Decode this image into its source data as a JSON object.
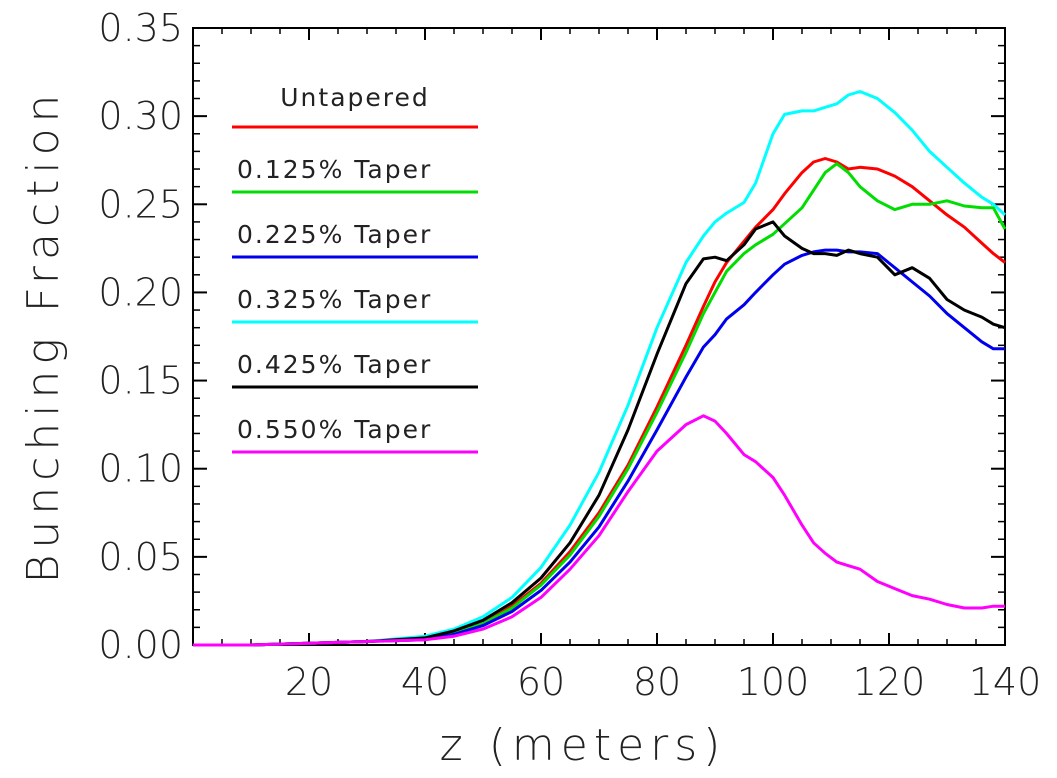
{
  "chart_data": {
    "type": "line",
    "title": "",
    "xlabel": "z (meters)",
    "ylabel": "Bunching Fraction",
    "xlim": [
      0,
      140
    ],
    "ylim": [
      0,
      0.35
    ],
    "x_ticks": [
      20,
      40,
      60,
      80,
      100,
      120,
      140
    ],
    "x_tick_labels": [
      "20",
      "40",
      "60",
      "80",
      "100",
      "120",
      "140"
    ],
    "y_ticks": [
      0,
      0.05,
      0.1,
      0.15,
      0.2,
      0.25,
      0.3,
      0.35
    ],
    "y_tick_labels": [
      "0.00",
      "0.05",
      "0.10",
      "0.15",
      "0.20",
      "0.25",
      "0.30",
      "0.35"
    ],
    "grid": false,
    "legend_title": "Untapered",
    "legend_position": "top-left",
    "x": [
      0,
      10,
      20,
      30,
      40,
      45,
      50,
      55,
      60,
      65,
      70,
      75,
      80,
      85,
      88,
      90,
      92,
      95,
      97,
      100,
      102,
      105,
      107,
      109,
      111,
      113,
      115,
      118,
      121,
      124,
      127,
      130,
      133,
      136,
      138,
      140
    ],
    "series": [
      {
        "name": "Untapered",
        "color": "#ff0000",
        "values": [
          0.0,
          0.0,
          0.001,
          0.002,
          0.004,
          0.007,
          0.012,
          0.022,
          0.035,
          0.053,
          0.075,
          0.102,
          0.135,
          0.17,
          0.192,
          0.206,
          0.217,
          0.229,
          0.237,
          0.247,
          0.256,
          0.268,
          0.274,
          0.276,
          0.274,
          0.27,
          0.271,
          0.27,
          0.266,
          0.26,
          0.252,
          0.244,
          0.237,
          0.228,
          0.222,
          0.217
        ]
      },
      {
        "name": "0.125% Taper",
        "color": "#00dd00",
        "values": [
          0.0,
          0.0,
          0.001,
          0.002,
          0.004,
          0.007,
          0.012,
          0.021,
          0.034,
          0.051,
          0.073,
          0.1,
          0.132,
          0.166,
          0.188,
          0.2,
          0.212,
          0.222,
          0.227,
          0.233,
          0.239,
          0.248,
          0.258,
          0.268,
          0.273,
          0.268,
          0.26,
          0.252,
          0.247,
          0.25,
          0.25,
          0.252,
          0.249,
          0.248,
          0.248,
          0.236
        ]
      },
      {
        "name": "0.225% Taper",
        "color": "#0000ee",
        "values": [
          0.0,
          0.0,
          0.001,
          0.002,
          0.003,
          0.006,
          0.011,
          0.019,
          0.031,
          0.047,
          0.067,
          0.093,
          0.122,
          0.152,
          0.169,
          0.176,
          0.185,
          0.193,
          0.2,
          0.21,
          0.216,
          0.221,
          0.223,
          0.224,
          0.224,
          0.223,
          0.223,
          0.222,
          0.214,
          0.206,
          0.198,
          0.188,
          0.18,
          0.172,
          0.168,
          0.168
        ]
      },
      {
        "name": "0.325% Taper",
        "color": "#00ffff",
        "values": [
          0.0,
          0.0,
          0.001,
          0.002,
          0.005,
          0.009,
          0.016,
          0.027,
          0.044,
          0.068,
          0.098,
          0.136,
          0.18,
          0.217,
          0.232,
          0.24,
          0.245,
          0.251,
          0.262,
          0.29,
          0.301,
          0.303,
          0.303,
          0.305,
          0.307,
          0.312,
          0.314,
          0.31,
          0.302,
          0.292,
          0.28,
          0.271,
          0.262,
          0.254,
          0.25,
          0.244
        ]
      },
      {
        "name": "0.425% Taper",
        "color": "#000000",
        "values": [
          0.0,
          0.0,
          0.001,
          0.002,
          0.004,
          0.008,
          0.014,
          0.024,
          0.038,
          0.058,
          0.085,
          0.122,
          0.165,
          0.205,
          0.219,
          0.22,
          0.218,
          0.227,
          0.236,
          0.24,
          0.232,
          0.225,
          0.222,
          0.222,
          0.221,
          0.224,
          0.222,
          0.22,
          0.21,
          0.214,
          0.208,
          0.196,
          0.19,
          0.186,
          0.182,
          0.18
        ]
      },
      {
        "name": "0.550% Taper",
        "color": "#ff00ff",
        "values": [
          0.0,
          0.0,
          0.001,
          0.002,
          0.003,
          0.005,
          0.009,
          0.016,
          0.027,
          0.043,
          0.062,
          0.087,
          0.11,
          0.125,
          0.13,
          0.127,
          0.12,
          0.108,
          0.104,
          0.095,
          0.085,
          0.068,
          0.058,
          0.052,
          0.047,
          0.045,
          0.043,
          0.036,
          0.032,
          0.028,
          0.026,
          0.023,
          0.021,
          0.021,
          0.022,
          0.022
        ]
      }
    ]
  }
}
